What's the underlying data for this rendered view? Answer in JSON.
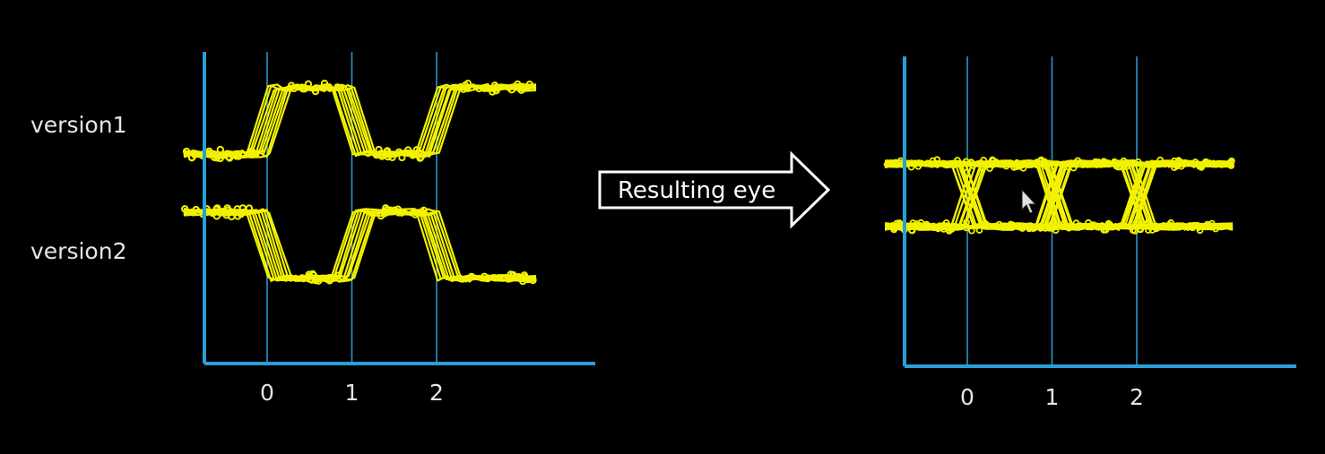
{
  "colors": {
    "background": "#000000",
    "axis": "#2a9fd6",
    "trace": "#f2f200",
    "text": "#e6e6e6",
    "arrow_fill": "#ffffff",
    "arrow_text": "#111111"
  },
  "arrow_label": "Resulting eye",
  "chart_data": [
    {
      "type": "line",
      "description_role": "input waveforms",
      "xlabel": "",
      "ylabel": "",
      "ticks": [
        "0",
        "1",
        "2"
      ],
      "xlim": [
        -0.75,
        3.6
      ],
      "series": [
        {
          "name": "version1",
          "bits": [
            0,
            1,
            0,
            1
          ],
          "x": [
            -0.75,
            0.0,
            1.0,
            2.0,
            3.0
          ],
          "levels": [
            0,
            1,
            0,
            1
          ]
        },
        {
          "name": "version2",
          "bits": [
            1,
            0,
            1,
            0
          ],
          "x": [
            -0.75,
            0.0,
            1.0,
            2.0,
            3.0
          ],
          "levels": [
            1,
            0,
            1,
            0
          ]
        }
      ]
    },
    {
      "type": "line",
      "description_role": "resulting eye diagram",
      "xlabel": "",
      "ylabel": "",
      "ticks": [
        "0",
        "1",
        "2"
      ],
      "xlim": [
        -0.75,
        3.6
      ],
      "pattern": "all transitions overlaid at bit boundaries 0, 1, 2",
      "levels": [
        0,
        1
      ]
    }
  ]
}
